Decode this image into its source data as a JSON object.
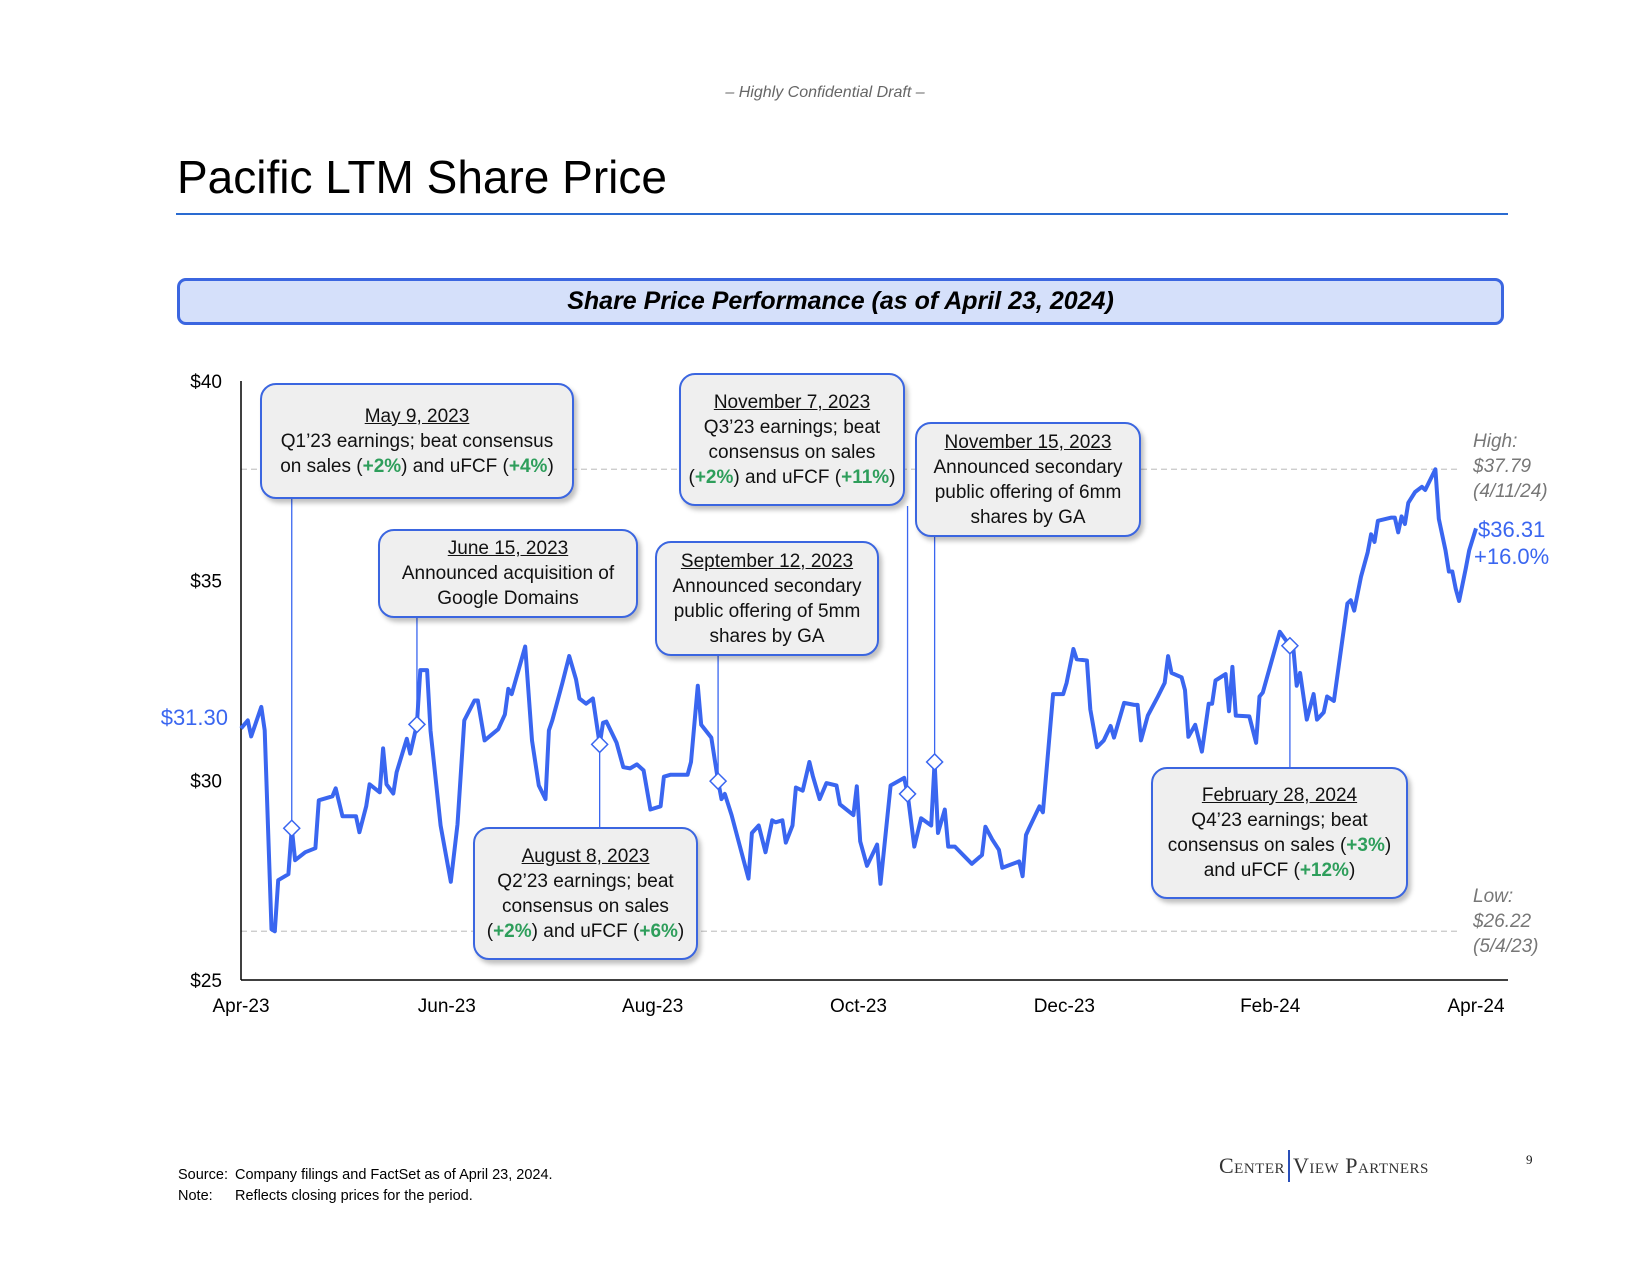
{
  "header": {
    "confidential": "– Highly Confidential Draft –",
    "title": "Pacific LTM Share Price"
  },
  "banner": "Share Price Performance (as of April 23, 2024)",
  "colors": {
    "line": "#3a66f0",
    "accent_border": "#3b66e0",
    "banner_fill": "#d5e0fa",
    "callout_fill": "#efefef",
    "positive": "#2e9e5b",
    "rule": "#2a6bd1"
  },
  "chart_data": {
    "type": "line",
    "ylim": [
      25,
      40
    ],
    "xlim": [
      "2023-04-24",
      "2024-04-23"
    ],
    "yticks": [
      "$25",
      "$30",
      "$35",
      "$40"
    ],
    "ytick_values": [
      25,
      30,
      35,
      40
    ],
    "xticks": [
      "Apr-23",
      "Jun-23",
      "Aug-23",
      "Oct-23",
      "Dec-23",
      "Feb-24",
      "Apr-24"
    ],
    "grid": false,
    "start_label": "$31.30",
    "high": {
      "label": "High:",
      "value": "$37.79",
      "date": "(4/11/24)",
      "price": 37.79
    },
    "low": {
      "label": "Low:",
      "value": "$26.22",
      "date": "(5/4/23)",
      "price": 26.22
    },
    "current": {
      "value": "$36.31",
      "change": "+16.0%"
    },
    "series": [
      {
        "x": [
          "2023-04-24",
          "2023-04-26",
          "2023-04-27",
          "2023-04-30",
          "2023-05-01",
          "2023-05-03",
          "2023-05-04",
          "2023-05-05",
          "2023-05-08",
          "2023-05-09",
          "2023-05-10",
          "2023-05-13",
          "2023-05-16",
          "2023-05-17",
          "2023-05-21",
          "2023-05-22",
          "2023-05-24",
          "2023-05-28",
          "2023-05-29",
          "2023-05-31",
          "2023-06-01",
          "2023-06-04",
          "2023-06-05",
          "2023-06-06",
          "2023-06-08",
          "2023-06-09",
          "2023-06-12",
          "2023-06-13",
          "2023-06-15",
          "2023-06-16",
          "2023-06-18",
          "2023-06-19",
          "2023-06-22",
          "2023-06-25",
          "2023-06-27",
          "2023-06-29",
          "2023-07-02",
          "2023-07-03",
          "2023-07-05",
          "2023-07-09",
          "2023-07-11",
          "2023-07-12",
          "2023-07-13",
          "2023-07-17",
          "2023-07-19",
          "2023-07-21",
          "2023-07-23",
          "2023-07-24",
          "2023-07-25",
          "2023-07-28",
          "2023-07-30",
          "2023-08-01",
          "2023-08-02",
          "2023-08-04",
          "2023-08-06",
          "2023-08-08",
          "2023-08-09",
          "2023-08-10",
          "2023-08-13",
          "2023-08-15",
          "2023-08-17",
          "2023-08-19",
          "2023-08-21",
          "2023-08-23",
          "2023-08-26",
          "2023-08-27",
          "2023-08-29",
          "2023-09-03",
          "2023-09-04",
          "2023-09-06",
          "2023-09-07",
          "2023-09-10",
          "2023-09-12",
          "2023-09-13",
          "2023-09-14",
          "2023-09-16",
          "2023-09-21",
          "2023-09-22",
          "2023-09-24",
          "2023-09-26",
          "2023-09-28",
          "2023-09-29",
          "2023-10-01",
          "2023-10-02",
          "2023-10-04",
          "2023-10-05",
          "2023-10-07",
          "2023-10-09",
          "2023-10-10",
          "2023-10-12",
          "2023-10-14",
          "2023-10-17",
          "2023-10-18",
          "2023-10-22",
          "2023-10-23",
          "2023-10-24",
          "2023-10-26",
          "2023-10-29",
          "2023-10-30",
          "2023-11-02",
          "2023-11-06",
          "2023-11-07",
          "2023-11-09",
          "2023-11-11",
          "2023-11-14",
          "2023-11-15",
          "2023-11-16",
          "2023-11-18",
          "2023-11-19",
          "2023-11-21",
          "2023-11-26",
          "2023-11-29",
          "2023-11-30",
          "2023-12-02",
          "2023-12-04",
          "2023-12-05",
          "2023-12-10",
          "2023-12-11",
          "2023-12-12",
          "2023-12-13",
          "2023-12-16",
          "2023-12-17",
          "2023-12-20",
          "2023-12-23",
          "2023-12-24",
          "2023-12-26",
          "2023-12-27",
          "2023-12-30",
          "2023-12-31",
          "2024-01-02",
          "2024-01-04",
          "2024-01-06",
          "2024-01-07",
          "2024-01-10",
          "2024-01-13",
          "2024-01-14",
          "2024-01-15",
          "2024-01-17",
          "2024-01-20",
          "2024-01-22",
          "2024-01-23",
          "2024-01-24",
          "2024-01-27",
          "2024-01-28",
          "2024-01-29",
          "2024-01-31",
          "2024-02-02",
          "2024-02-04",
          "2024-02-05",
          "2024-02-06",
          "2024-02-09",
          "2024-02-10",
          "2024-02-11",
          "2024-02-12",
          "2024-02-16",
          "2024-02-18",
          "2024-02-19",
          "2024-02-20",
          "2024-02-25",
          "2024-02-28",
          "2024-02-29",
          "2024-03-01",
          "2024-03-02",
          "2024-03-04",
          "2024-03-06",
          "2024-03-07",
          "2024-03-09",
          "2024-03-10",
          "2024-03-12",
          "2024-03-16",
          "2024-03-17",
          "2024-03-18",
          "2024-03-20",
          "2024-03-22",
          "2024-03-23",
          "2024-03-24",
          "2024-03-25",
          "2024-03-29",
          "2024-03-30",
          "2024-03-31",
          "2024-04-01",
          "2024-04-02",
          "2024-04-03",
          "2024-04-05",
          "2024-04-07",
          "2024-04-08",
          "2024-04-11",
          "2024-04-12",
          "2024-04-14",
          "2024-04-15",
          "2024-04-16",
          "2024-04-17",
          "2024-04-18",
          "2024-04-20",
          "2024-04-21",
          "2024-04-23"
        ],
        "y": [
          31.3,
          31.5,
          31.1,
          31.84,
          31.25,
          26.27,
          26.22,
          27.5,
          27.65,
          28.8,
          28.0,
          28.2,
          28.3,
          29.5,
          29.6,
          29.8,
          29.1,
          29.1,
          28.7,
          29.35,
          29.9,
          29.7,
          30.8,
          29.9,
          29.67,
          30.2,
          31.04,
          30.67,
          31.4,
          32.76,
          32.76,
          31.25,
          28.87,
          27.46,
          28.9,
          31.5,
          32.0,
          32.0,
          31.0,
          31.28,
          31.65,
          32.29,
          32.16,
          33.35,
          31.0,
          29.87,
          29.53,
          31.25,
          31.5,
          32.44,
          33.11,
          32.53,
          32.05,
          31.92,
          32.05,
          30.9,
          31.44,
          31.47,
          30.94,
          30.33,
          30.3,
          30.4,
          30.25,
          29.27,
          29.35,
          30.09,
          30.14,
          30.14,
          30.46,
          32.37,
          31.39,
          31.07,
          29.98,
          29.53,
          29.66,
          29.13,
          27.54,
          28.68,
          28.87,
          28.2,
          29.0,
          28.95,
          29.0,
          28.44,
          28.87,
          29.82,
          29.74,
          30.46,
          30.11,
          29.53,
          29.93,
          29.87,
          29.4,
          29.13,
          29.85,
          28.47,
          27.86,
          28.39,
          27.41,
          29.87,
          30.06,
          29.66,
          28.34,
          29.05,
          28.87,
          30.46,
          28.68,
          29.27,
          28.34,
          28.34,
          27.91,
          28.13,
          28.84,
          28.52,
          28.26,
          27.81,
          27.97,
          27.6,
          28.63,
          28.82,
          29.35,
          29.2,
          32.16,
          32.16,
          32.44,
          33.29,
          33.03,
          33.0,
          31.78,
          30.83,
          31.0,
          31.36,
          31.07,
          31.94,
          31.89,
          31.89,
          31.0,
          31.62,
          32.1,
          32.44,
          33.11,
          32.69,
          32.58,
          32.26,
          31.09,
          31.39,
          30.72,
          31.92,
          31.92,
          32.5,
          32.66,
          31.73,
          32.84,
          31.62,
          31.6,
          30.94,
          32.1,
          32.2,
          33.72,
          33.37,
          33.32,
          32.37,
          32.69,
          31.52,
          32.16,
          31.52,
          31.7,
          32.1,
          31.99,
          34.43,
          34.51,
          34.25,
          35.1,
          35.71,
          36.16,
          35.97,
          36.5,
          36.58,
          36.58,
          36.21,
          36.61,
          36.42,
          36.95,
          37.22,
          37.35,
          37.27,
          37.79,
          36.55,
          35.76,
          35.23,
          35.23,
          34.8,
          34.49,
          35.31,
          35.76,
          36.31
        ]
      }
    ]
  },
  "annotations": [
    {
      "event_date": "2023-05-09",
      "date": "May 9, 2023",
      "lines": [
        [
          {
            "t": "Q1’23 earnings; beat consensus"
          }
        ],
        [
          {
            "t": "on sales ("
          },
          {
            "t": "+2%",
            "g": true
          },
          {
            "t": ") and uFCF ("
          },
          {
            "t": "+4%",
            "g": true
          },
          {
            "t": ")"
          }
        ]
      ]
    },
    {
      "event_date": "2023-06-15",
      "date": "June 15, 2023",
      "lines": [
        [
          {
            "t": "Announced acquisition of"
          }
        ],
        [
          {
            "t": "Google Domains"
          }
        ]
      ]
    },
    {
      "event_date": "2023-08-08",
      "date": "August 8, 2023",
      "lines": [
        [
          {
            "t": "Q2’23 earnings; beat"
          }
        ],
        [
          {
            "t": "consensus on sales"
          }
        ],
        [
          {
            "t": "("
          },
          {
            "t": "+2%",
            "g": true
          },
          {
            "t": ") and uFCF ("
          },
          {
            "t": "+6%",
            "g": true
          },
          {
            "t": ")"
          }
        ]
      ]
    },
    {
      "event_date": "2023-09-12",
      "date": "September 12, 2023",
      "lines": [
        [
          {
            "t": "Announced secondary"
          }
        ],
        [
          {
            "t": "public offering of 5mm"
          }
        ],
        [
          {
            "t": "shares by GA"
          }
        ]
      ]
    },
    {
      "event_date": "2023-11-07",
      "date": "November 7, 2023",
      "lines": [
        [
          {
            "t": "Q3’23 earnings; beat"
          }
        ],
        [
          {
            "t": "consensus on sales"
          }
        ],
        [
          {
            "t": "("
          },
          {
            "t": "+2%",
            "g": true
          },
          {
            "t": ") and uFCF ("
          },
          {
            "t": "+11%",
            "g": true
          },
          {
            "t": ")"
          }
        ]
      ]
    },
    {
      "event_date": "2023-11-15",
      "date": "November 15, 2023",
      "lines": [
        [
          {
            "t": "Announced secondary"
          }
        ],
        [
          {
            "t": "public offering of 6mm"
          }
        ],
        [
          {
            "t": "shares by GA"
          }
        ]
      ]
    },
    {
      "event_date": "2024-02-28",
      "date": "February 28, 2024",
      "lines": [
        [
          {
            "t": "Q4’23 earnings; beat"
          }
        ],
        [
          {
            "t": "consensus on sales ("
          },
          {
            "t": "+3%",
            "g": true
          },
          {
            "t": ")"
          }
        ],
        [
          {
            "t": "and uFCF ("
          },
          {
            "t": "+12%",
            "g": true
          },
          {
            "t": ")"
          }
        ]
      ]
    }
  ],
  "footer": {
    "source_label": "Source:",
    "source_text": "Company filings and FactSet as of April 23, 2024.",
    "note_label": "Note:",
    "note_text": "Reflects closing prices for the period.",
    "logo_left": "Center",
    "logo_right": "View Partners",
    "page_number": "9"
  }
}
